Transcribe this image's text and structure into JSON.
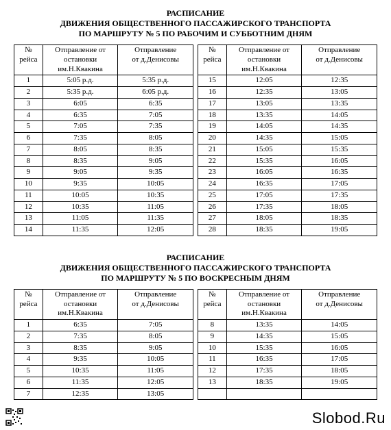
{
  "section1": {
    "title_l1": "РАСПИСАНИЕ",
    "title_l2": "ДВИЖЕНИЯ ОБЩЕСТВЕННОГО ПАССАЖИРСКОГО ТРАНСПОРТА",
    "title_l3": "ПО МАРШРУТУ № 5 ПО РАБОЧИМ И СУББОТНИМ ДНЯМ",
    "headers": {
      "num_l1": "№",
      "num_l2": "рейса",
      "dep1_l1": "Отправление от",
      "dep1_l2": "остановки",
      "dep1_l3": "им.Н.Квакина",
      "dep2_l1": "Отправление",
      "dep2_l2": "от д.Денисовы",
      "dep2b_l1": "Отправление",
      "dep2b_l2": "от д.Денисовы"
    },
    "left": [
      {
        "n": "1",
        "a": "5:05 р.д.",
        "b": "5:35 р.д."
      },
      {
        "n": "2",
        "a": "5:35 р.д.",
        "b": "6:05 р.д."
      },
      {
        "n": "3",
        "a": "6:05",
        "b": "6:35"
      },
      {
        "n": "4",
        "a": "6:35",
        "b": "7:05"
      },
      {
        "n": "5",
        "a": "7:05",
        "b": "7:35"
      },
      {
        "n": "6",
        "a": "7:35",
        "b": "8:05"
      },
      {
        "n": "7",
        "a": "8:05",
        "b": "8:35"
      },
      {
        "n": "8",
        "a": "8:35",
        "b": "9:05"
      },
      {
        "n": "9",
        "a": "9:05",
        "b": "9:35"
      },
      {
        "n": "10",
        "a": "9:35",
        "b": "10:05"
      },
      {
        "n": "11",
        "a": "10:05",
        "b": "10:35"
      },
      {
        "n": "12",
        "a": "10:35",
        "b": "11:05"
      },
      {
        "n": "13",
        "a": "11:05",
        "b": "11:35"
      },
      {
        "n": "14",
        "a": "11:35",
        "b": "12:05"
      }
    ],
    "right": [
      {
        "n": "15",
        "a": "12:05",
        "b": "12:35"
      },
      {
        "n": "16",
        "a": "12:35",
        "b": "13:05"
      },
      {
        "n": "17",
        "a": "13:05",
        "b": "13:35"
      },
      {
        "n": "18",
        "a": "13:35",
        "b": "14:05"
      },
      {
        "n": "19",
        "a": "14:05",
        "b": "14:35"
      },
      {
        "n": "20",
        "a": "14:35",
        "b": "15:05"
      },
      {
        "n": "21",
        "a": "15:05",
        "b": "15:35"
      },
      {
        "n": "22",
        "a": "15:35",
        "b": "16:05"
      },
      {
        "n": "23",
        "a": "16:05",
        "b": "16:35"
      },
      {
        "n": "24",
        "a": "16:35",
        "b": "17:05"
      },
      {
        "n": "25",
        "a": "17:05",
        "b": "17:35"
      },
      {
        "n": "26",
        "a": "17:35",
        "b": "18:05"
      },
      {
        "n": "27",
        "a": "18:05",
        "b": "18:35"
      },
      {
        "n": "28",
        "a": "18:35",
        "b": "19:05"
      }
    ]
  },
  "section2": {
    "title_l1": "РАСПИСАНИЕ",
    "title_l2": "ДВИЖЕНИЯ ОБЩЕСТВЕННОГО ПАССАЖИРСКОГО ТРАНСПОРТА",
    "title_l3": "ПО МАРШРУТУ № 5 ПО ВОСКРЕСНЫМ ДНЯМ",
    "left": [
      {
        "n": "1",
        "a": "6:35",
        "b": "7:05"
      },
      {
        "n": "2",
        "a": "7:35",
        "b": "8:05"
      },
      {
        "n": "3",
        "a": "8:35",
        "b": "9:05"
      },
      {
        "n": "4",
        "a": "9:35",
        "b": "10:05"
      },
      {
        "n": "5",
        "a": "10:35",
        "b": "11:05"
      },
      {
        "n": "6",
        "a": "11:35",
        "b": "12:05"
      },
      {
        "n": "7",
        "a": "12:35",
        "b": "13:05"
      }
    ],
    "right": [
      {
        "n": "8",
        "a": "13:35",
        "b": "14:05"
      },
      {
        "n": "9",
        "a": "14:35",
        "b": "15:05"
      },
      {
        "n": "10",
        "a": "15:35",
        "b": "16:05"
      },
      {
        "n": "11",
        "a": "16:35",
        "b": "17:05"
      },
      {
        "n": "12",
        "a": "17:35",
        "b": "18:05"
      },
      {
        "n": "13",
        "a": "18:35",
        "b": "19:05"
      },
      {
        "n": "",
        "a": "",
        "b": ""
      }
    ]
  },
  "brand": "Slobod.Ru"
}
